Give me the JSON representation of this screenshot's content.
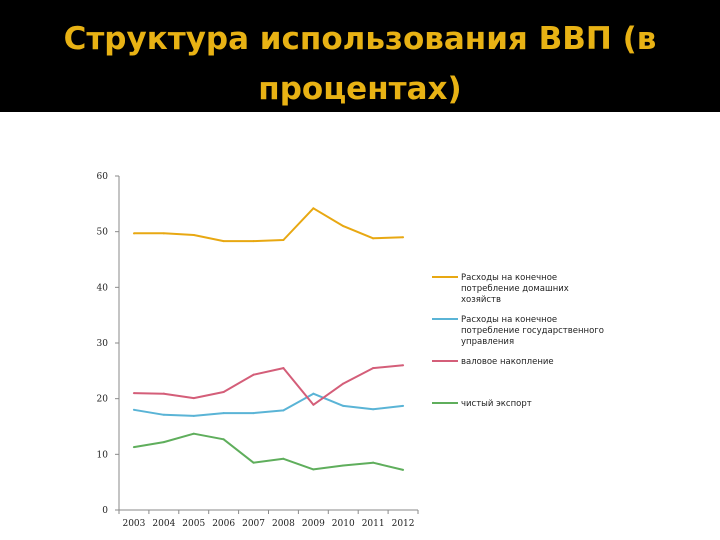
{
  "slide": {
    "title": "Структура использования ВВП (в процентах)"
  },
  "chart_data": {
    "type": "line",
    "title": "",
    "xlabel": "",
    "ylabel": "",
    "x": [
      "2003",
      "2004",
      "2005",
      "2006",
      "2007",
      "2008",
      "2009",
      "2010",
      "2011",
      "2012"
    ],
    "ylim": [
      0,
      60
    ],
    "yticks": [
      0,
      10,
      20,
      30,
      40,
      50,
      60
    ],
    "grid": false,
    "legend_position": "right",
    "series": [
      {
        "name": "Расходы на конечное потребление домашних хозяйств",
        "name_lines": [
          "Расходы на конечное",
          "потребление домашних",
          "хозяйств"
        ],
        "color": "#e8a812",
        "values": [
          49.7,
          49.7,
          49.4,
          48.3,
          48.3,
          48.5,
          54.2,
          51.0,
          48.8,
          49.0
        ]
      },
      {
        "name": "Расходы на конечное потребление государственного управления",
        "name_lines": [
          "Расходы на конечное",
          "потребление государственного",
          "управления"
        ],
        "color": "#5ab4d6",
        "values": [
          18.0,
          17.1,
          16.9,
          17.4,
          17.4,
          17.9,
          20.9,
          18.7,
          18.1,
          18.7
        ]
      },
      {
        "name": "валовое накопление",
        "name_lines": [
          "валовое накопление"
        ],
        "color": "#d45e79",
        "values": [
          21.0,
          20.9,
          20.1,
          21.2,
          24.3,
          25.5,
          18.9,
          22.7,
          25.5,
          26.0
        ]
      },
      {
        "name": "чистый экспорт",
        "name_lines": [
          "чистый экспорт"
        ],
        "color": "#5fae5c",
        "values": [
          11.3,
          12.2,
          13.7,
          12.7,
          8.5,
          9.2,
          7.3,
          8.0,
          8.5,
          7.2
        ]
      }
    ]
  }
}
